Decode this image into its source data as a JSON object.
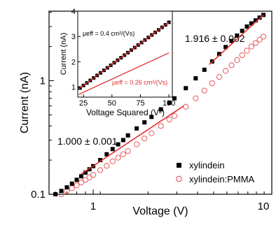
{
  "chart_data": [
    {
      "type": "scatter",
      "xscale": "log",
      "yscale": "log",
      "xlabel": "Voltage (V)",
      "ylabel": "Current (nA)",
      "xlim": [
        0.55,
        11.2
      ],
      "ylim": [
        0.1,
        4.1
      ],
      "xticks": [
        {
          "value": 1,
          "label": "1"
        },
        {
          "value": 10,
          "label": "10"
        }
      ],
      "yticks": [
        {
          "value": 0.1,
          "label": "0.1"
        },
        {
          "value": 1,
          "label": "1"
        }
      ],
      "grid": false,
      "legend": {
        "position": "bottom-right"
      },
      "series": [
        {
          "name": "xylindein",
          "marker": "filled-square",
          "color": "#000000",
          "x": [
            0.6,
            0.65,
            0.7,
            0.75,
            0.8,
            0.85,
            0.9,
            0.95,
            1.0,
            1.1,
            1.2,
            1.3,
            1.4,
            1.5,
            1.6,
            1.8,
            2.0,
            2.2,
            2.5,
            2.8,
            3.0,
            3.5,
            4.0,
            4.5,
            5.0,
            5.5,
            6.0,
            6.5,
            7.0,
            7.5,
            8.0,
            8.5,
            9.0,
            9.5,
            10.0
          ],
          "y": [
            0.1,
            0.107,
            0.115,
            0.124,
            0.134,
            0.144,
            0.155,
            0.166,
            0.177,
            0.2,
            0.225,
            0.25,
            0.275,
            0.3,
            0.33,
            0.38,
            0.43,
            0.48,
            0.56,
            0.64,
            0.7,
            0.86,
            1.05,
            1.25,
            1.48,
            1.72,
            1.98,
            2.24,
            2.5,
            2.75,
            3.0,
            3.2,
            3.4,
            3.6,
            3.8
          ]
        },
        {
          "name": "xylindein:PMMA",
          "marker": "open-circle",
          "color": "#e8575a",
          "x": [
            0.65,
            0.7,
            0.75,
            0.8,
            0.85,
            0.9,
            0.95,
            1.0,
            1.1,
            1.2,
            1.3,
            1.4,
            1.5,
            1.6,
            1.8,
            2.0,
            2.2,
            2.5,
            2.8,
            3.0,
            3.5,
            4.0,
            4.5,
            5.0,
            5.5,
            6.0,
            6.5,
            7.0,
            7.5,
            8.0,
            8.5,
            9.0,
            9.5,
            10.0
          ],
          "y": [
            0.1,
            0.107,
            0.113,
            0.12,
            0.127,
            0.134,
            0.141,
            0.148,
            0.163,
            0.178,
            0.195,
            0.21,
            0.225,
            0.24,
            0.275,
            0.31,
            0.345,
            0.4,
            0.455,
            0.49,
            0.59,
            0.7,
            0.82,
            0.95,
            1.08,
            1.22,
            1.37,
            1.52,
            1.68,
            1.84,
            2.0,
            2.15,
            2.3,
            2.45
          ]
        }
      ],
      "fit_lines": [
        {
          "x": [
            0.85,
            3.4
          ],
          "y": [
            0.151,
            0.6
          ],
          "color": "#e03030"
        },
        {
          "x": [
            4.8,
            10.0
          ],
          "y": [
            1.39,
            3.8
          ],
          "color": "#e03030"
        }
      ],
      "annotations": [
        {
          "text": "1.000 ± 0.001",
          "near": "mid-left"
        },
        {
          "text": "1.916 ± 0.002",
          "near": "top-right"
        }
      ]
    },
    {
      "type": "scatter",
      "xlabel": "Voltage Squared (V²)",
      "ylabel": "Current (nA)",
      "xlim": [
        20,
        103
      ],
      "ylim": [
        0.6,
        4.0
      ],
      "xticks": [
        25,
        50,
        75,
        100
      ],
      "yticks": [
        1,
        2,
        3,
        4
      ],
      "series": [
        {
          "name": "xylindein",
          "marker": "filled-square",
          "color": "#000000",
          "x": [
            22,
            25,
            28,
            31,
            34,
            37,
            40,
            43,
            46,
            49,
            52,
            55,
            58,
            61,
            64,
            67,
            70,
            73,
            76,
            79,
            82,
            85,
            88,
            91,
            94,
            97,
            100
          ],
          "y": [
            0.96,
            1.06,
            1.16,
            1.26,
            1.36,
            1.46,
            1.56,
            1.66,
            1.76,
            1.86,
            1.96,
            2.06,
            2.16,
            2.26,
            2.36,
            2.46,
            2.56,
            2.66,
            2.76,
            2.86,
            2.96,
            3.06,
            3.16,
            3.26,
            3.36,
            3.46,
            3.56
          ]
        }
      ],
      "fit_lines": [
        {
          "x": [
            21,
            100
          ],
          "y": [
            0.93,
            3.56
          ],
          "color": "#e03030"
        },
        {
          "x": [
            21,
            100
          ],
          "y": [
            0.71,
            2.35
          ],
          "color": "#e03030"
        }
      ],
      "annotations": [
        {
          "text": "μeff = 0.4 cm²/(Vs)",
          "color": "#000000"
        },
        {
          "text": "μeff = 0.26 cm²/(Vs)",
          "color": "#e03030"
        }
      ]
    }
  ]
}
